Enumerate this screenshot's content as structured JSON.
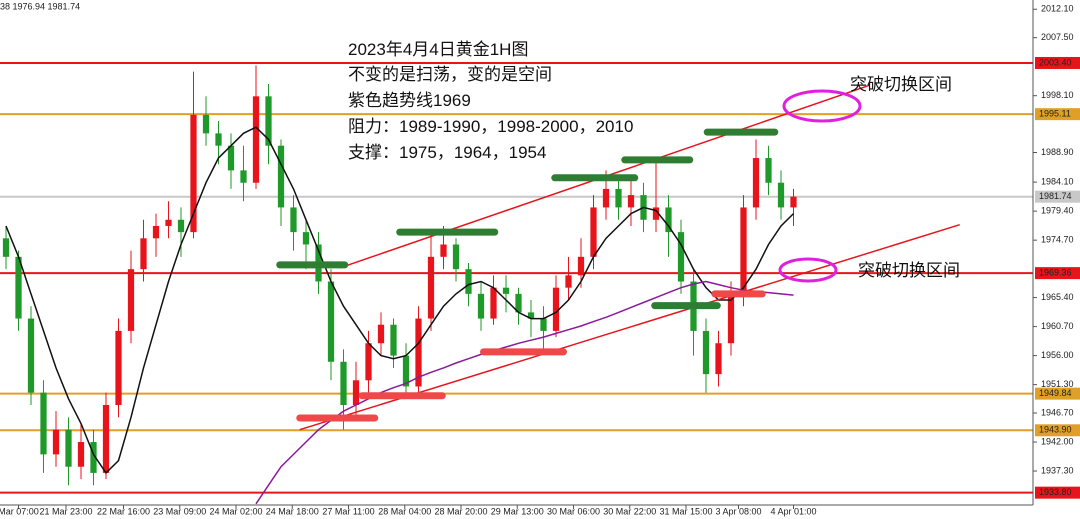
{
  "chart_data": {
    "type": "candlestick",
    "ohlc_info": "38 1976.94 1981.74",
    "title": "2023年4月4日黄金1H图",
    "notes": [
      "不变的是扫荡，变的是空间",
      "紫色趋势线1969",
      "阻力：1989-1990，1998-2000，2010",
      "支撑：1975，1964，1954"
    ],
    "annotations": [
      "突破切换区间",
      "突破切换区间"
    ],
    "up_color": "#e8141c",
    "down_color": "#1f9a2a",
    "xlim": [
      -0.48,
      82.16
    ],
    "ylim": [
      1931.8,
      2013.6
    ],
    "xticks": [
      {
        "value": 1,
        "label": "Mar 07:00"
      },
      {
        "value": 4.8,
        "label": "21 Mar 23:00"
      },
      {
        "value": 9.4,
        "label": "22 Mar 16:00"
      },
      {
        "value": 13.9,
        "label": "23 Mar 09:00"
      },
      {
        "value": 18.4,
        "label": "24 Mar 02:00"
      },
      {
        "value": 22.9,
        "label": "24 Mar 18:00"
      },
      {
        "value": 27.4,
        "label": "27 Mar 11:00"
      },
      {
        "value": 31.9,
        "label": "28 Mar 04:00"
      },
      {
        "value": 36.4,
        "label": "28 Mar 20:00"
      },
      {
        "value": 40.9,
        "label": "29 Mar 13:00"
      },
      {
        "value": 45.4,
        "label": "30 Mar 06:00"
      },
      {
        "value": 49.9,
        "label": "30 Mar 22:00"
      },
      {
        "value": 54.4,
        "label": "31 Mar 15:00"
      },
      {
        "value": 58.6,
        "label": "3 Apr 08:00"
      },
      {
        "value": 63,
        "label": "4 Apr 01:00"
      }
    ],
    "yticks": [
      {
        "value": 2012.1,
        "label": "2012.10"
      },
      {
        "value": 2007.5,
        "label": "2007.50"
      },
      {
        "value": 1998.1,
        "label": "1998.10"
      },
      {
        "value": 1988.9,
        "label": "1988.90"
      },
      {
        "value": 1984.1,
        "label": "1984.10"
      },
      {
        "value": 1979.4,
        "label": "1979.40"
      },
      {
        "value": 1974.7,
        "label": "1974.70"
      },
      {
        "value": 1965.4,
        "label": "1965.40"
      },
      {
        "value": 1960.7,
        "label": "1960.70"
      },
      {
        "value": 1956,
        "label": "1956.00"
      },
      {
        "value": 1951.3,
        "label": "1951.30"
      },
      {
        "value": 1946.7,
        "label": "1946.70"
      },
      {
        "value": 1942,
        "label": "1942.00"
      },
      {
        "value": 1937.3,
        "label": "1937.30"
      }
    ],
    "levels": [
      {
        "value": 2003.4,
        "label": "2003.40",
        "color": "#e8141c"
      },
      {
        "value": 1995.11,
        "label": "1995.11",
        "color": "#e0a028"
      },
      {
        "value": 1981.74,
        "label": "1981.74",
        "color": "#c8c8c8"
      },
      {
        "value": 1969.36,
        "label": "1969.36",
        "color": "#e8141c"
      },
      {
        "value": 1949.84,
        "label": "1949.84",
        "color": "#e0a028"
      },
      {
        "value": 1943.9,
        "label": "1943.90",
        "color": "#e0a028"
      },
      {
        "value": 1933.8,
        "label": "1933.80",
        "color": "#e8141c"
      }
    ],
    "candles": [
      [
        1975,
        1977,
        1970,
        1972
      ],
      [
        1972,
        1973,
        1960,
        1962
      ],
      [
        1962,
        1964,
        1948,
        1950
      ],
      [
        1950,
        1952,
        1937,
        1940
      ],
      [
        1940,
        1947,
        1938,
        1944
      ],
      [
        1944,
        1946,
        1935,
        1938
      ],
      [
        1938,
        1945,
        1936,
        1942
      ],
      [
        1942,
        1944,
        1935,
        1937
      ],
      [
        1937,
        1950,
        1936,
        1948
      ],
      [
        1948,
        1962,
        1946,
        1960
      ],
      [
        1960,
        1973,
        1958,
        1970
      ],
      [
        1970,
        1978,
        1968,
        1975
      ],
      [
        1975,
        1979,
        1972,
        1977
      ],
      [
        1977,
        1981,
        1975,
        1978
      ],
      [
        1978,
        1980,
        1972,
        1976
      ],
      [
        1976,
        2002,
        1975,
        1995
      ],
      [
        1995,
        1998,
        1990,
        1992
      ],
      [
        1992,
        1994,
        1987,
        1990
      ],
      [
        1990,
        1992,
        1983,
        1986
      ],
      [
        1986,
        1990,
        1981,
        1984
      ],
      [
        1984,
        2003,
        1983,
        1998
      ],
      [
        1998,
        2000,
        1987,
        1990
      ],
      [
        1990,
        1991,
        1977,
        1980
      ],
      [
        1980,
        1982,
        1973,
        1976
      ],
      [
        1976,
        1978,
        1970,
        1974
      ],
      [
        1974,
        1976,
        1966,
        1968
      ],
      [
        1968,
        1970,
        1952,
        1955
      ],
      [
        1955,
        1957,
        1944,
        1948
      ],
      [
        1948,
        1955,
        1946,
        1952
      ],
      [
        1952,
        1960,
        1950,
        1958
      ],
      [
        1958,
        1963,
        1956,
        1961
      ],
      [
        1961,
        1962,
        1954,
        1956
      ],
      [
        1956,
        1958,
        1949,
        1951
      ],
      [
        1951,
        1964,
        1950,
        1962
      ],
      [
        1962,
        1976,
        1960,
        1972
      ],
      [
        1972,
        1977,
        1970,
        1974
      ],
      [
        1974,
        1975,
        1968,
        1970
      ],
      [
        1970,
        1971,
        1964,
        1966
      ],
      [
        1966,
        1968,
        1960,
        1962
      ],
      [
        1962,
        1969,
        1961,
        1967
      ],
      [
        1967,
        1969,
        1963,
        1966
      ],
      [
        1966,
        1967,
        1961,
        1963
      ],
      [
        1963,
        1965,
        1959,
        1962
      ],
      [
        1962,
        1964,
        1957,
        1960
      ],
      [
        1960,
        1969,
        1959,
        1967
      ],
      [
        1967,
        1972,
        1965,
        1969
      ],
      [
        1969,
        1975,
        1967,
        1972
      ],
      [
        1972,
        1982,
        1970,
        1980
      ],
      [
        1980,
        1986,
        1978,
        1983
      ],
      [
        1983,
        1985,
        1978,
        1980
      ],
      [
        1980,
        1985,
        1977,
        1982
      ],
      [
        1982,
        1984,
        1976,
        1978
      ],
      [
        1978,
        1988,
        1976,
        1980
      ],
      [
        1980,
        1982,
        1972,
        1976
      ],
      [
        1976,
        1978,
        1966,
        1968
      ],
      [
        1968,
        1970,
        1956,
        1960
      ],
      [
        1960,
        1962,
        1950,
        1953
      ],
      [
        1953,
        1960,
        1951,
        1958
      ],
      [
        1958,
        1968,
        1956,
        1966
      ],
      [
        1966,
        1982,
        1964,
        1980
      ],
      [
        1980,
        1991,
        1978,
        1988
      ],
      [
        1988,
        1990,
        1982,
        1984
      ],
      [
        1984,
        1986,
        1978,
        1980
      ],
      [
        1980,
        1983,
        1977,
        1981.74
      ]
    ],
    "series": [
      {
        "color": "#111111",
        "values": [
          1977,
          1972,
          1966,
          1960,
          1954,
          1949,
          1945,
          1940,
          1937,
          1939,
          1946,
          1954,
          1961,
          1968,
          1974,
          1979,
          1984,
          1988,
          1990,
          1992,
          1993,
          1991,
          1987,
          1983,
          1978,
          1973,
          1968,
          1964,
          1961,
          1958,
          1956,
          1955.5,
          1956,
          1958,
          1961,
          1964,
          1966,
          1967.5,
          1968,
          1967,
          1965,
          1963,
          1962,
          1962,
          1963,
          1965,
          1968,
          1972,
          1975,
          1977,
          1979,
          1980,
          1979.5,
          1977,
          1974,
          1970,
          1967,
          1965,
          1965,
          1967,
          1970,
          1974,
          1977,
          1979
        ]
      },
      {
        "color": "#8a1a9a",
        "values": [
          null,
          null,
          null,
          null,
          null,
          null,
          null,
          null,
          null,
          null,
          null,
          null,
          null,
          null,
          null,
          null,
          null,
          null,
          null,
          null,
          1932,
          1935,
          1938,
          1940,
          1942,
          1944,
          1945.5,
          1947,
          1948,
          1949,
          1950,
          1950.8,
          1951.5,
          1952.5,
          1953.3,
          1954,
          1954.8,
          1955.5,
          1956.2,
          1956.8,
          1957.4,
          1958,
          1958.5,
          1959,
          1959.6,
          1960.2,
          1960.8,
          1961.5,
          1962.2,
          1963,
          1963.8,
          1964.6,
          1965.4,
          1966.2,
          1967,
          1967.6,
          1968,
          1967.5,
          1967,
          1966.6,
          1966.4,
          1966.2,
          1966,
          1965.8
        ]
      }
    ],
    "trendlines": [
      {
        "x": [
          26.7,
          69.1
        ],
        "y": [
          1970.2,
          1999.8
        ],
        "color": "#e8141c"
      },
      {
        "x": [
          23.5,
          76.3
        ],
        "y": [
          1944.0,
          1977.2
        ],
        "color": "#e8141c"
      }
    ],
    "zones": [
      {
        "x": [
          21.9,
          27.1
        ],
        "y": 1970.7,
        "color": "#2f7d32"
      },
      {
        "x": [
          31.5,
          39.1
        ],
        "y": 1976.0,
        "color": "#2f7d32"
      },
      {
        "x": [
          43.9,
          50.3
        ],
        "y": 1984.8,
        "color": "#2f7d32"
      },
      {
        "x": [
          49.5,
          54.7
        ],
        "y": 1987.7,
        "color": "#2f7d32"
      },
      {
        "x": [
          56.1,
          61.5
        ],
        "y": 1992.2,
        "color": "#2f7d32"
      },
      {
        "x": [
          51.9,
          56.9
        ],
        "y": 1964.1,
        "color": "#2f7d32"
      },
      {
        "x": [
          23.5,
          29.5
        ],
        "y": 1945.9,
        "color": "#f04848"
      },
      {
        "x": [
          28.5,
          34.9
        ],
        "y": 1949.5,
        "color": "#f04848"
      },
      {
        "x": [
          38.2,
          44.6
        ],
        "y": 1956.6,
        "color": "#f04848"
      },
      {
        "x": [
          56.7,
          60.5
        ],
        "y": 1966.0,
        "color": "#f04848"
      }
    ]
  }
}
